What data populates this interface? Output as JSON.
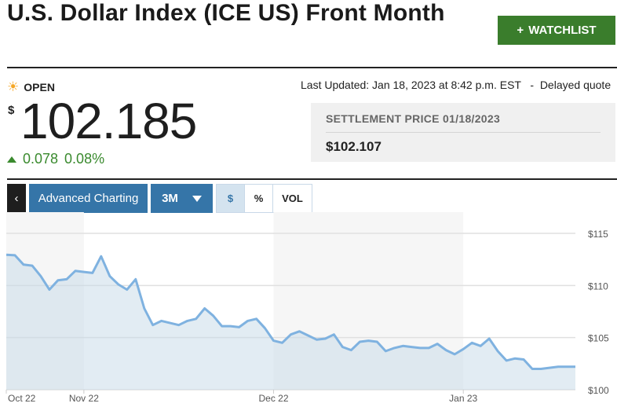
{
  "header": {
    "title": "U.S. Dollar Index (ICE US) Front Month",
    "watchlist_label": "WATCHLIST",
    "watchlist_icon": "plus-icon"
  },
  "quote": {
    "status": "OPEN",
    "status_icon": "sun-icon",
    "currency": "$",
    "price": "102.185",
    "change": "0.078",
    "change_pct": "0.08%",
    "direction": "up",
    "change_color": "#3a8a2e",
    "last_updated": "Last Updated: Jan 18, 2023 at 8:42 p.m. EST   -  Delayed quote",
    "settlement_label": "SETTLEMENT PRICE 01/18/2023",
    "settlement_value": "$102.107"
  },
  "toolbar": {
    "back_icon": "chevron-left-icon",
    "advanced_label": "Advanced Charting",
    "range": "3M",
    "seg_dollar": "$",
    "seg_pct": "%",
    "seg_vol": "VOL",
    "selected": "$",
    "accent": "#3575a8"
  },
  "chart_data": {
    "type": "area",
    "ylim": [
      100,
      115
    ],
    "y_ticks": [
      "$115",
      "$110",
      "$105",
      "$100"
    ],
    "y_tick_values": [
      115,
      110,
      105,
      100
    ],
    "x_tick_labels": [
      "Oct 22",
      "Nov 22",
      "Dec 22",
      "Jan 23"
    ],
    "x_tick_index": [
      0,
      9,
      31,
      53
    ],
    "grid": true,
    "line_color": "#7fb2e0",
    "values": [
      112.95,
      112.9,
      112.0,
      111.9,
      110.9,
      109.6,
      110.5,
      110.6,
      111.4,
      111.3,
      111.2,
      112.8,
      110.9,
      110.1,
      109.6,
      110.6,
      107.8,
      106.2,
      106.6,
      106.4,
      106.2,
      106.6,
      106.8,
      107.8,
      107.1,
      106.1,
      106.1,
      106.0,
      106.6,
      106.8,
      105.9,
      104.7,
      104.5,
      105.3,
      105.6,
      105.2,
      104.8,
      104.9,
      105.3,
      104.1,
      103.8,
      104.6,
      104.7,
      104.6,
      103.7,
      104.0,
      104.2,
      104.1,
      104.0,
      104.0,
      104.4,
      103.8,
      103.4,
      103.9,
      104.5,
      104.2,
      104.9,
      103.7,
      102.8,
      103.0,
      102.9,
      102.0,
      102.0,
      102.1,
      102.2,
      102.2,
      102.2
    ]
  }
}
